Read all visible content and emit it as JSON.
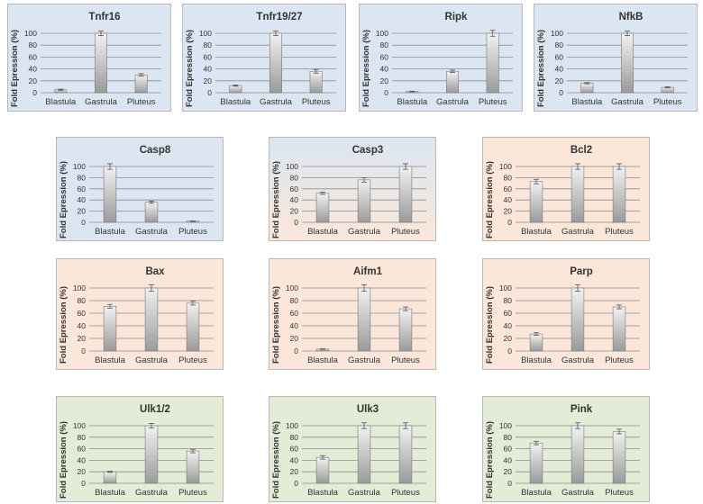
{
  "colors": {
    "blue": "#dbe6f2",
    "peach": "#fbe7da",
    "green": "#e2ecd6",
    "bar_top": "#f2f2f2",
    "bar_bottom": "#9a9a9a",
    "grid": "#8c8c8c"
  },
  "chart_data": [
    {
      "id": "A",
      "title": "Tnfr16",
      "type": "bar",
      "bg": "blue",
      "ylabel": "Fold Epression (%)",
      "ylim": [
        0,
        100
      ],
      "ticks": [
        0,
        20,
        40,
        60,
        80,
        100
      ],
      "categories": [
        "Blastula",
        "Gastrula",
        "Pluteus"
      ],
      "values": [
        5,
        100,
        30
      ],
      "errors": [
        1,
        4,
        2
      ]
    },
    {
      "id": "B",
      "title": "Tnfr19/27",
      "type": "bar",
      "bg": "blue",
      "ylabel": "Fold Epression (%)",
      "ylim": [
        0,
        100
      ],
      "ticks": [
        0,
        20,
        40,
        60,
        80,
        100
      ],
      "categories": [
        "Blastula",
        "Gastrula",
        "Pluteus"
      ],
      "values": [
        12,
        100,
        36
      ],
      "errors": [
        1,
        4,
        3
      ]
    },
    {
      "id": "C",
      "title": "Ripk",
      "type": "bar",
      "bg": "blue",
      "ylabel": "Fold Epression (%)",
      "ylim": [
        0,
        100
      ],
      "ticks": [
        0,
        20,
        40,
        60,
        80,
        100
      ],
      "categories": [
        "Blastula",
        "Gastrula",
        "Pluteus"
      ],
      "values": [
        2,
        36,
        100
      ],
      "errors": [
        0.5,
        2,
        5
      ]
    },
    {
      "id": "D",
      "title": "NfkB",
      "type": "bar",
      "bg": "blue",
      "ylabel": "Fold Epression (%)",
      "ylim": [
        0,
        100
      ],
      "ticks": [
        0,
        20,
        40,
        60,
        80,
        100
      ],
      "categories": [
        "Blastula",
        "Gastrula",
        "Pluteus"
      ],
      "values": [
        16,
        100,
        9
      ],
      "errors": [
        1,
        4,
        1
      ]
    },
    {
      "id": "E",
      "title": "Casp8",
      "type": "bar",
      "bg": "blue",
      "ylabel": "Fold Epression (%)",
      "ylim": [
        0,
        100
      ],
      "ticks": [
        0,
        20,
        40,
        60,
        80,
        100
      ],
      "categories": [
        "Blastula",
        "Gastrula",
        "Pluteus"
      ],
      "values": [
        100,
        36,
        2
      ],
      "errors": [
        5,
        2,
        0.5
      ]
    },
    {
      "id": "F",
      "title": "Casp3",
      "type": "bar",
      "bg": "mix",
      "ylabel": "Fold Epression (%)",
      "ylim": [
        0,
        100
      ],
      "ticks": [
        0,
        20,
        40,
        60,
        80,
        100
      ],
      "categories": [
        "Blastula",
        "Gastrula",
        "Pluteus"
      ],
      "values": [
        52,
        76,
        100
      ],
      "errors": [
        2,
        4,
        5
      ]
    },
    {
      "id": "G",
      "title": "Bcl2",
      "type": "bar",
      "bg": "peach",
      "ylabel": "Fold Epression (%)",
      "ylim": [
        0,
        100
      ],
      "ticks": [
        0,
        20,
        40,
        60,
        80,
        100
      ],
      "categories": [
        "Blastula",
        "Gastrula",
        "Pluteus"
      ],
      "values": [
        73,
        100,
        100
      ],
      "errors": [
        4,
        5,
        5
      ]
    },
    {
      "id": "H",
      "title": "Bax",
      "type": "bar",
      "bg": "peach",
      "ylabel": "Fold Epression (%)",
      "ylim": [
        0,
        100
      ],
      "ticks": [
        0,
        20,
        40,
        60,
        80,
        100
      ],
      "categories": [
        "Blastula",
        "Gastrula",
        "Pluteus"
      ],
      "values": [
        71,
        100,
        76
      ],
      "errors": [
        3,
        5,
        3
      ]
    },
    {
      "id": "I",
      "title": "Aifm1",
      "type": "bar",
      "bg": "peach",
      "ylabel": "Fold Epression (%)",
      "ylim": [
        0,
        100
      ],
      "ticks": [
        0,
        20,
        40,
        60,
        80,
        100
      ],
      "categories": [
        "Blastula",
        "Gastrula",
        "Pluteus"
      ],
      "values": [
        3,
        100,
        67
      ],
      "errors": [
        0.5,
        5,
        3
      ]
    },
    {
      "id": "J",
      "title": "Parp",
      "type": "bar",
      "bg": "peach",
      "ylabel": "Fold Epression (%)",
      "ylim": [
        0,
        100
      ],
      "ticks": [
        0,
        20,
        40,
        60,
        80,
        100
      ],
      "categories": [
        "Blastula",
        "Gastrula",
        "Pluteus"
      ],
      "values": [
        27,
        100,
        70
      ],
      "errors": [
        2,
        5,
        3
      ]
    },
    {
      "id": "K",
      "title": "Ulk1/2",
      "type": "bar",
      "bg": "green",
      "ylabel": "Fold Epression (%)",
      "ylim": [
        0,
        100
      ],
      "ticks": [
        0,
        20,
        40,
        60,
        80,
        100
      ],
      "categories": [
        "Blastula",
        "Gastrula",
        "Pluteus"
      ],
      "values": [
        20,
        100,
        56
      ],
      "errors": [
        1,
        4,
        3
      ]
    },
    {
      "id": "L",
      "title": "Ulk3",
      "type": "bar",
      "bg": "green",
      "ylabel": "Fold Epression (%)",
      "ylim": [
        0,
        100
      ],
      "ticks": [
        0,
        20,
        40,
        60,
        80,
        100
      ],
      "categories": [
        "Blastula",
        "Gastrula",
        "Pluteus"
      ],
      "values": [
        45,
        100,
        100
      ],
      "errors": [
        3,
        5,
        5
      ]
    },
    {
      "id": "M",
      "title": "Pink",
      "type": "bar",
      "bg": "green",
      "ylabel": "Fold Epression (%)",
      "ylim": [
        0,
        100
      ],
      "ticks": [
        0,
        20,
        40,
        60,
        80,
        100
      ],
      "categories": [
        "Blastula",
        "Gastrula",
        "Pluteus"
      ],
      "values": [
        70,
        100,
        90
      ],
      "errors": [
        3,
        5,
        4
      ]
    }
  ]
}
